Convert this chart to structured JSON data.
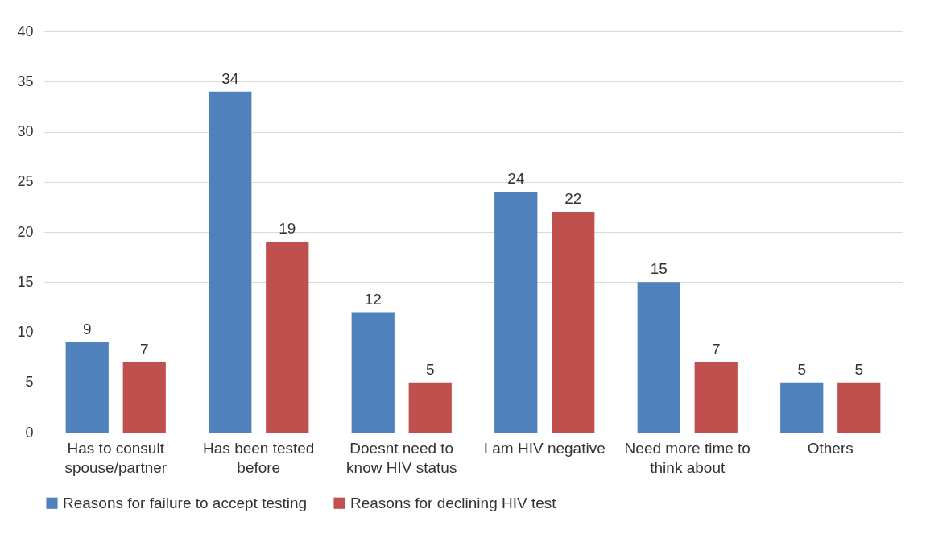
{
  "chart_data": {
    "type": "bar",
    "categories": [
      "Has to consult spouse/partner",
      "Has been tested before",
      "Doesnt need to know HIV status",
      "I am HIV negative",
      "Need more time to think about",
      "Others"
    ],
    "series": [
      {
        "name": "Reasons for failure to accept testing",
        "color": "#4f81bd",
        "values": [
          9,
          34,
          12,
          24,
          15,
          5
        ]
      },
      {
        "name": "Reasons for declining HIV test",
        "color": "#c0504d",
        "values": [
          7,
          19,
          5,
          22,
          7,
          5
        ]
      }
    ],
    "ylim": [
      0,
      40
    ],
    "yticks": [
      0,
      5,
      10,
      15,
      20,
      25,
      30,
      35,
      40
    ],
    "grid": "y",
    "legend": "bottom",
    "data_labels": true
  }
}
